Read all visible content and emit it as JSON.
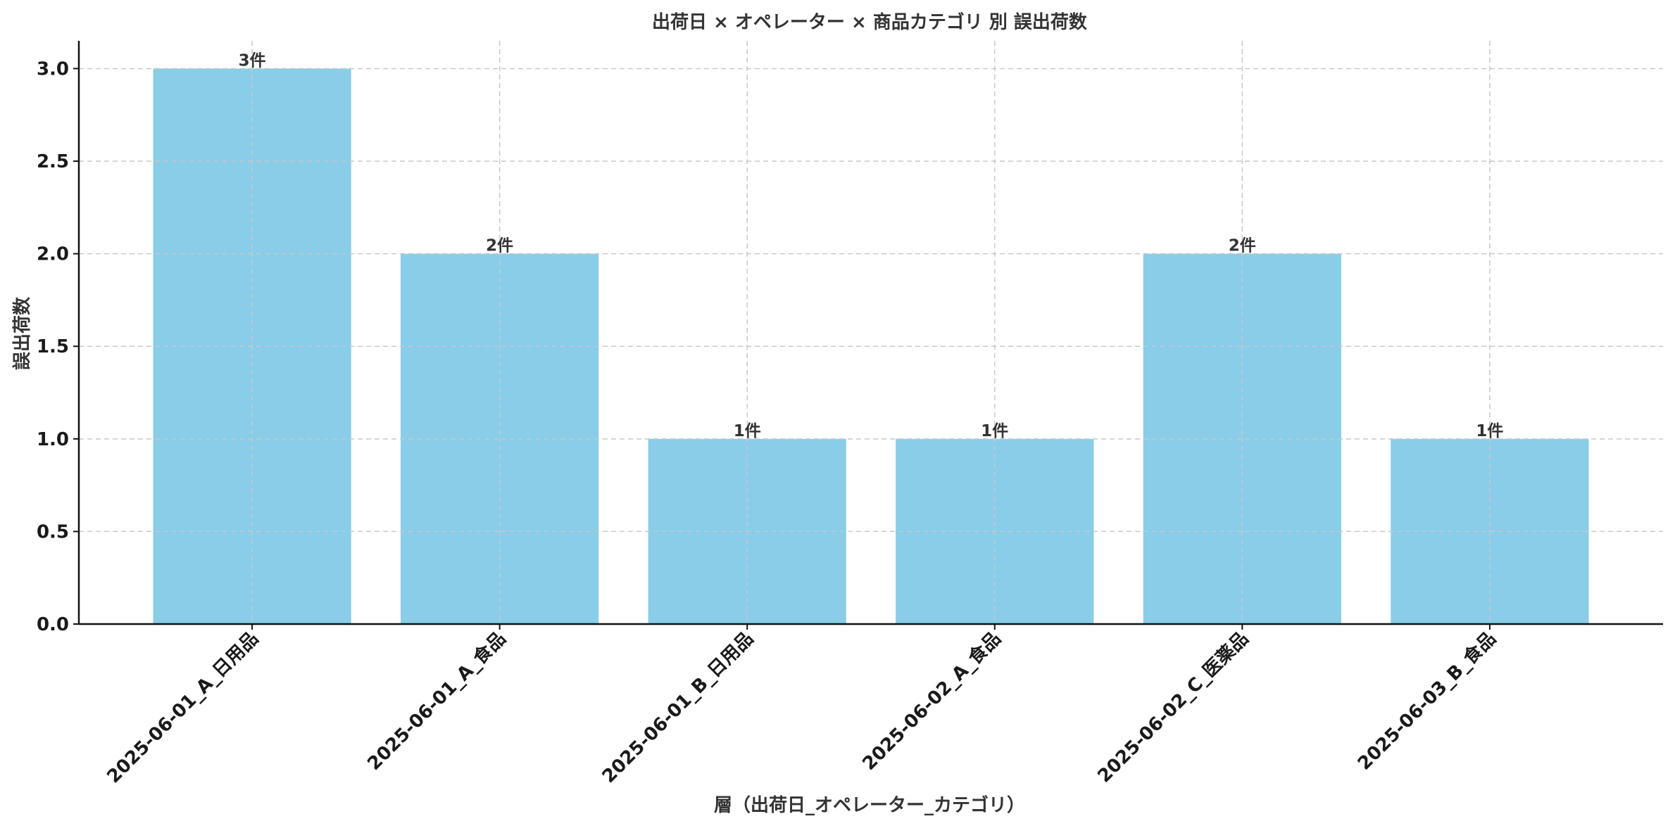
{
  "chart_data": {
    "type": "bar",
    "title": "出荷日 × オペレーター × 商品カテゴリ 別 誤出荷数",
    "xlabel": "層（出荷日_オペレーター_カテゴリ）",
    "ylabel": "誤出荷数",
    "categories": [
      "2025-06-01_A_日用品",
      "2025-06-01_A_食品",
      "2025-06-01_B_日用品",
      "2025-06-02_A_食品",
      "2025-06-02_C_医薬品",
      "2025-06-03_B_食品"
    ],
    "values": [
      3,
      2,
      1,
      1,
      2,
      1
    ],
    "data_labels": [
      "3件",
      "2件",
      "1件",
      "1件",
      "2件",
      "1件"
    ],
    "yticks": [
      "0.0",
      "0.5",
      "1.0",
      "1.5",
      "2.0",
      "2.5",
      "3.0"
    ],
    "ylim": [
      0,
      3.15
    ],
    "grid": true,
    "bar_color": "#89cde9",
    "legend": "none"
  }
}
